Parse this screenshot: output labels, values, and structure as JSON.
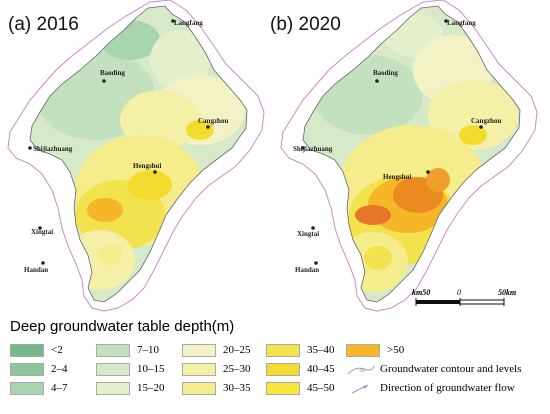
{
  "panels": [
    {
      "title": "(a) 2016"
    },
    {
      "title": "(b) 2020"
    }
  ],
  "cities": {
    "langfang": "Langfang",
    "baoding": "Baoding",
    "cangzhou": "Cangzhou",
    "shijiazhuang": "Shijiazhuang",
    "hengshui": "Hengshui",
    "xingtai": "Xingtai",
    "handan": "Handan"
  },
  "scalebar": {
    "left": "km50",
    "center": "0",
    "right": "50km"
  },
  "legend": {
    "title": "Deep  groundwater table depth(m)",
    "classes": [
      {
        "label": "<2",
        "color": "#74b98a"
      },
      {
        "label": "2–4",
        "color": "#8fc79c"
      },
      {
        "label": "4–7",
        "color": "#a8d4b0"
      },
      {
        "label": "7–10",
        "color": "#c3e0bf"
      },
      {
        "label": "10–15",
        "color": "#d6e9c8"
      },
      {
        "label": "15–20",
        "color": "#e4efcc"
      },
      {
        "label": "20–25",
        "color": "#f2f2c4"
      },
      {
        "label": "25–30",
        "color": "#f4f0a8"
      },
      {
        "label": "30–35",
        "color": "#f5ec8c"
      },
      {
        "label": "35–40",
        "color": "#f1e24e"
      },
      {
        "label": "40–45",
        "color": "#f3dc2e"
      },
      {
        "label": "45–50",
        "color": "#f7e73a"
      },
      {
        "label": ">50",
        "color": "#f5b728"
      }
    ],
    "contour_label": "Groundwater contour and levels",
    "flow_label": "Direction of groundwater flow"
  }
}
